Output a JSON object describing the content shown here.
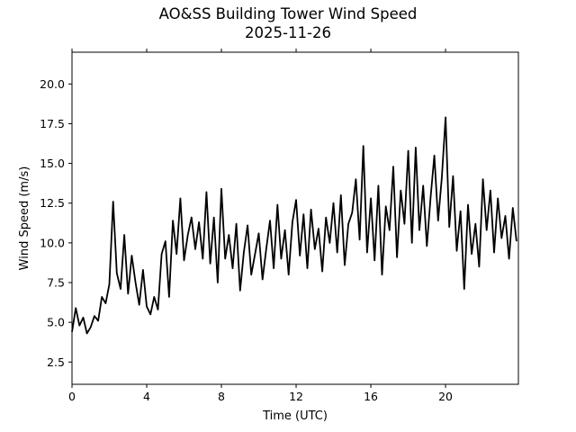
{
  "chart_data": {
    "type": "line",
    "title": "AO&SS Building Tower Wind Speed",
    "subtitle": "2025-11-26",
    "xlabel": "Time (UTC)",
    "ylabel": "Wind Speed (m/s)",
    "xlim": [
      0,
      23.9
    ],
    "ylim": [
      1.1,
      22.0
    ],
    "x_ticks": [
      0,
      4,
      8,
      12,
      16,
      20
    ],
    "x_tick_labels": [
      "0",
      "4",
      "8",
      "12",
      "16",
      "20"
    ],
    "y_ticks": [
      2.5,
      5.0,
      7.5,
      10.0,
      12.5,
      15.0,
      17.5,
      20.0
    ],
    "y_tick_labels": [
      "2.5",
      "5.0",
      "7.5",
      "10.0",
      "12.5",
      "15.0",
      "17.5",
      "20.0"
    ],
    "grid": false,
    "line_color": "#000000",
    "series": [
      {
        "x": [
          0.0,
          0.2,
          0.4,
          0.6,
          0.8,
          1.0,
          1.2,
          1.4,
          1.6,
          1.8,
          2.0,
          2.2,
          2.4,
          2.6,
          2.8,
          3.0,
          3.2,
          3.4,
          3.6,
          3.8,
          4.0,
          4.2,
          4.4,
          4.6,
          4.8,
          5.0,
          5.2,
          5.4,
          5.6,
          5.8,
          6.0,
          6.2,
          6.4,
          6.6,
          6.8,
          7.0,
          7.2,
          7.4,
          7.6,
          7.8,
          8.0,
          8.2,
          8.4,
          8.6,
          8.8,
          9.0,
          9.2,
          9.4,
          9.6,
          9.8,
          10.0,
          10.2,
          10.4,
          10.6,
          10.8,
          11.0,
          11.2,
          11.4,
          11.6,
          11.8,
          12.0,
          12.2,
          12.4,
          12.6,
          12.8,
          13.0,
          13.2,
          13.4,
          13.6,
          13.8,
          14.0,
          14.2,
          14.4,
          14.6,
          14.8,
          15.0,
          15.2,
          15.4,
          15.6,
          15.8,
          16.0,
          16.2,
          16.4,
          16.6,
          16.8,
          17.0,
          17.2,
          17.4,
          17.6,
          17.8,
          18.0,
          18.2,
          18.4,
          18.6,
          18.8,
          19.0,
          19.2,
          19.4,
          19.6,
          19.8,
          20.0,
          20.2,
          20.4,
          20.6,
          20.8,
          21.0,
          21.2,
          21.4,
          21.6,
          21.8,
          22.0,
          22.2,
          22.4,
          22.6,
          22.8,
          23.0,
          23.2,
          23.4,
          23.6,
          23.8
        ],
        "y": [
          4.4,
          5.9,
          4.8,
          5.3,
          4.3,
          4.7,
          5.4,
          5.1,
          6.6,
          6.2,
          7.4,
          12.6,
          8.1,
          7.1,
          10.5,
          6.8,
          9.2,
          7.5,
          6.1,
          8.3,
          6.0,
          5.5,
          6.6,
          5.8,
          9.3,
          10.1,
          6.6,
          11.4,
          9.3,
          12.8,
          8.9,
          10.5,
          11.6,
          9.6,
          11.3,
          9.0,
          13.2,
          8.7,
          11.6,
          7.5,
          13.4,
          9.0,
          10.5,
          8.4,
          11.2,
          7.0,
          9.4,
          11.1,
          8.0,
          9.3,
          10.6,
          7.7,
          9.6,
          11.4,
          8.4,
          12.4,
          9.0,
          10.8,
          8.0,
          11.3,
          12.7,
          9.2,
          11.8,
          8.4,
          12.1,
          9.6,
          10.9,
          8.2,
          11.6,
          10.0,
          12.5,
          9.4,
          13.0,
          8.6,
          11.2,
          11.9,
          14.0,
          10.2,
          16.1,
          9.4,
          12.8,
          8.9,
          13.6,
          8.0,
          12.3,
          10.8,
          14.8,
          9.1,
          13.3,
          11.2,
          15.8,
          10.0,
          16.0,
          10.8,
          13.6,
          9.8,
          12.9,
          15.5,
          11.4,
          14.1,
          17.9,
          11.0,
          14.2,
          9.5,
          12.0,
          7.1,
          12.4,
          9.3,
          11.2,
          8.5,
          14.0,
          10.8,
          13.3,
          9.4,
          12.8,
          10.3,
          11.7,
          9.0,
          12.2,
          10.1
        ]
      }
    ]
  }
}
